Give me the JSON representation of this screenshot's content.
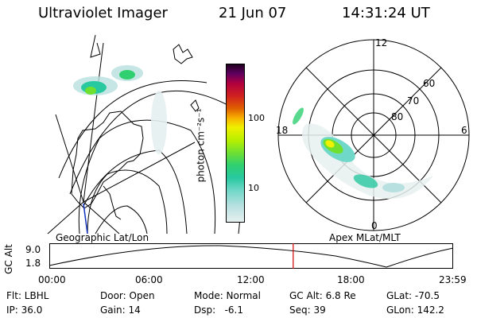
{
  "header": {
    "instrument": "Ultraviolet Imager",
    "date": "21 Jun 07",
    "time": "14:31:24 UT"
  },
  "geo_panel": {
    "caption": "Geographic Lat/Lon"
  },
  "polar_panel": {
    "caption": "Apex MLat/MLT",
    "mlt_labels": [
      "12",
      "18",
      "6",
      "0"
    ],
    "lat_labels": [
      "60",
      "70",
      "80"
    ]
  },
  "colorbar": {
    "unit_label": "photon cm⁻²s⁻¹",
    "tick_labels": [
      "100",
      "10"
    ],
    "colors": [
      "#e6f0f0",
      "#b8e0e0",
      "#70d8c8",
      "#28c8a0",
      "#30d070",
      "#70e030",
      "#b8f000",
      "#f0f000",
      "#f8b000",
      "#e06000",
      "#d02020",
      "#b00040",
      "#600060",
      "#200020"
    ]
  },
  "altitude_strip": {
    "ylabel": "GC Alt",
    "y_ticks": [
      "9.0",
      "1.8"
    ],
    "x_ticks": [
      "00:00",
      "06:00",
      "12:00",
      "18:00",
      "23:59"
    ],
    "current_time_fraction": 0.604,
    "marker_color": "#d00000"
  },
  "info": {
    "row1": {
      "flt": "Flt: LBHL",
      "door": "Door: Open",
      "mode": "Mode: Normal",
      "gcalt": "GC Alt: 6.8 Re",
      "glat": "GLat: -70.5"
    },
    "row2": {
      "ip": "IP: 36.0",
      "gain": "Gain: 14",
      "dsp": "Dsp:   -6.1",
      "seq": "Seq: 39",
      "glon": "GLon: 142.2"
    }
  }
}
